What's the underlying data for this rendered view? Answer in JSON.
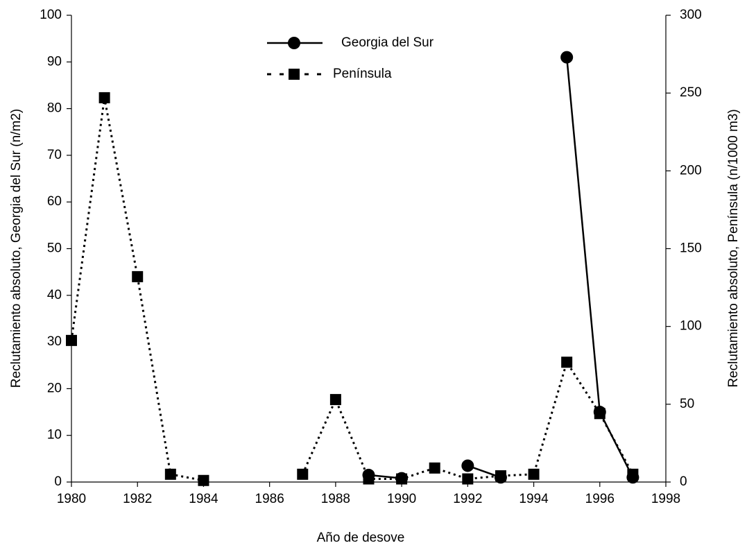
{
  "chart_data": {
    "type": "line",
    "xlabel": "Año de desove",
    "ylabel": "Reclutamiento absoluto, Georgia del Sur (n/m2)",
    "y2label": "Reclutamiento absoluto, Península (n/1000 m3)",
    "x": [
      1980,
      1981,
      1982,
      1983,
      1984,
      1985,
      1986,
      1987,
      1988,
      1989,
      1990,
      1991,
      1992,
      1993,
      1994,
      1995,
      1996,
      1997
    ],
    "series": [
      {
        "name": "Georgia del Sur",
        "color": "#000000",
        "marker": "circle",
        "dash": "solid",
        "values": [
          null,
          null,
          null,
          null,
          null,
          null,
          null,
          null,
          null,
          1.5,
          0.8,
          null,
          3.5,
          1,
          null,
          91,
          15,
          1
        ]
      },
      {
        "name": "Península",
        "color": "#000000",
        "marker": "square",
        "dash": "dotted",
        "axis": "y2",
        "values": [
          91,
          247,
          132,
          5,
          1,
          null,
          null,
          5,
          53,
          2,
          2,
          9,
          2,
          4,
          5,
          77,
          44,
          5
        ]
      }
    ],
    "xlim": [
      1980,
      1998
    ],
    "xticks": [
      1980,
      1982,
      1984,
      1986,
      1988,
      1990,
      1992,
      1994,
      1996,
      1998
    ],
    "ylim": [
      0,
      100
    ],
    "yticks": [
      0,
      10,
      20,
      30,
      40,
      50,
      60,
      70,
      80,
      90,
      100
    ],
    "y2lim": [
      0,
      300
    ],
    "y2ticks": [
      0,
      50,
      100,
      150,
      200,
      250,
      300
    ],
    "grid": false,
    "legend": "top"
  }
}
